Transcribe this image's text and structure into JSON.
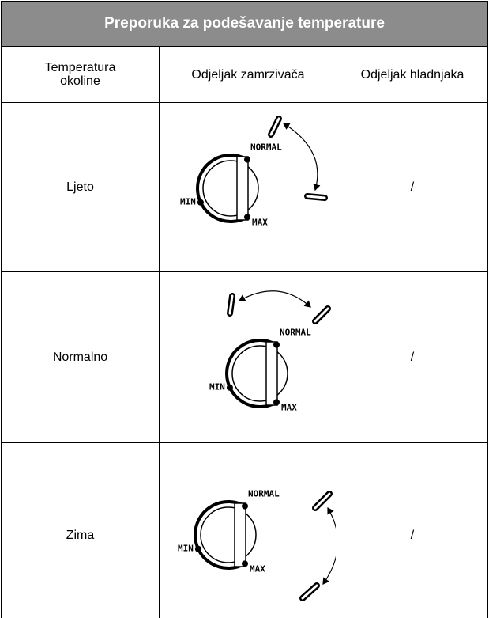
{
  "header": {
    "title": "Preporuka za podešavanje temperature"
  },
  "table": {
    "columns": [
      "Temperatura okoline",
      "Odjeljak zamrzivača",
      "Odjeljak hladnjaka"
    ],
    "rows": [
      {
        "ambient": "Ljeto",
        "freezer": {
          "min": "MIN",
          "normal": "NORMAL",
          "max": "MAX"
        },
        "fridge": "/"
      },
      {
        "ambient": "Normalno",
        "freezer": {
          "min": "MIN",
          "normal": "NORMAL",
          "max": "MAX"
        },
        "fridge": "/"
      },
      {
        "ambient": "Zima",
        "freezer": {
          "min": "MIN",
          "normal": "NORMAL",
          "max": "MAX"
        },
        "fridge": "/"
      }
    ]
  }
}
